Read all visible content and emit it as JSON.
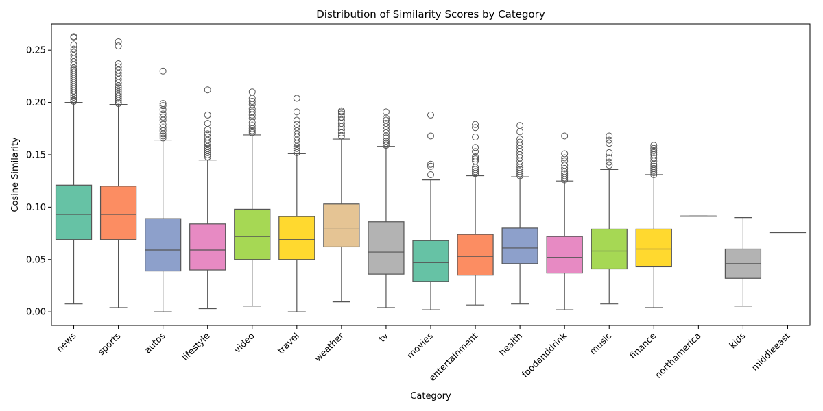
{
  "chart_data": {
    "type": "box",
    "title": "Distribution of Similarity Scores by Category",
    "xlabel": "Category",
    "ylabel": "Cosine Similarity",
    "ylim": [
      -0.013,
      0.275
    ],
    "yticks": [
      0.0,
      0.05,
      0.1,
      0.15,
      0.2,
      0.25
    ],
    "ytick_labels": [
      "0.00",
      "0.05",
      "0.10",
      "0.15",
      "0.20",
      "0.25"
    ],
    "grid": false,
    "legend": "none",
    "categories": [
      {
        "name": "news",
        "color": "#66c2a5",
        "whisker_low": 0.0075,
        "q1": 0.069,
        "median": 0.093,
        "q3": 0.121,
        "whisker_high": 0.2,
        "outliers": [
          0.201,
          0.202,
          0.203,
          0.205,
          0.207,
          0.209,
          0.211,
          0.213,
          0.215,
          0.217,
          0.219,
          0.221,
          0.223,
          0.225,
          0.227,
          0.229,
          0.231,
          0.233,
          0.236,
          0.239,
          0.242,
          0.245,
          0.248,
          0.251,
          0.255,
          0.262,
          0.263
        ]
      },
      {
        "name": "sports",
        "color": "#fc8d62",
        "whisker_low": 0.004,
        "q1": 0.069,
        "median": 0.093,
        "q3": 0.12,
        "whisker_high": 0.198,
        "outliers": [
          0.199,
          0.2,
          0.202,
          0.204,
          0.206,
          0.208,
          0.21,
          0.212,
          0.214,
          0.216,
          0.219,
          0.222,
          0.225,
          0.228,
          0.231,
          0.234,
          0.237,
          0.254,
          0.258
        ]
      },
      {
        "name": "autos",
        "color": "#8da0cb",
        "whisker_low": 0.0,
        "q1": 0.039,
        "median": 0.059,
        "q3": 0.089,
        "whisker_high": 0.164,
        "outliers": [
          0.166,
          0.168,
          0.17,
          0.173,
          0.176,
          0.179,
          0.183,
          0.186,
          0.189,
          0.193,
          0.197,
          0.199,
          0.23
        ]
      },
      {
        "name": "lifestyle",
        "color": "#e78ac3",
        "whisker_low": 0.003,
        "q1": 0.04,
        "median": 0.059,
        "q3": 0.084,
        "whisker_high": 0.145,
        "outliers": [
          0.148,
          0.15,
          0.152,
          0.154,
          0.156,
          0.158,
          0.161,
          0.164,
          0.167,
          0.17,
          0.174,
          0.18,
          0.188,
          0.212
        ]
      },
      {
        "name": "video",
        "color": "#a6d854",
        "whisker_low": 0.0055,
        "q1": 0.05,
        "median": 0.072,
        "q3": 0.098,
        "whisker_high": 0.169,
        "outliers": [
          0.171,
          0.173,
          0.175,
          0.178,
          0.181,
          0.185,
          0.188,
          0.191,
          0.194,
          0.198,
          0.201,
          0.204,
          0.21
        ]
      },
      {
        "name": "travel",
        "color": "#ffd92f",
        "whisker_low": 0.0,
        "q1": 0.05,
        "median": 0.069,
        "q3": 0.091,
        "whisker_high": 0.151,
        "outliers": [
          0.152,
          0.154,
          0.156,
          0.158,
          0.161,
          0.164,
          0.167,
          0.17,
          0.173,
          0.176,
          0.179,
          0.183,
          0.191,
          0.204
        ]
      },
      {
        "name": "weather",
        "color": "#e5c494",
        "whisker_low": 0.0095,
        "q1": 0.062,
        "median": 0.079,
        "q3": 0.103,
        "whisker_high": 0.165,
        "outliers": [
          0.168,
          0.171,
          0.174,
          0.177,
          0.18,
          0.183,
          0.186,
          0.189,
          0.191,
          0.192
        ]
      },
      {
        "name": "tv",
        "color": "#b3b3b3",
        "whisker_low": 0.004,
        "q1": 0.036,
        "median": 0.057,
        "q3": 0.086,
        "whisker_high": 0.158,
        "outliers": [
          0.159,
          0.161,
          0.163,
          0.166,
          0.168,
          0.171,
          0.174,
          0.177,
          0.18,
          0.183,
          0.185,
          0.191
        ]
      },
      {
        "name": "movies",
        "color": "#66c2a5",
        "whisker_low": 0.002,
        "q1": 0.029,
        "median": 0.047,
        "q3": 0.068,
        "whisker_high": 0.126,
        "outliers": [
          0.131,
          0.139,
          0.141,
          0.168,
          0.188
        ]
      },
      {
        "name": "entertainment",
        "color": "#fc8d62",
        "whisker_low": 0.0065,
        "q1": 0.035,
        "median": 0.053,
        "q3": 0.074,
        "whisker_high": 0.13,
        "outliers": [
          0.132,
          0.134,
          0.136,
          0.138,
          0.144,
          0.146,
          0.148,
          0.153,
          0.157,
          0.167,
          0.176,
          0.179
        ]
      },
      {
        "name": "health",
        "color": "#8da0cb",
        "whisker_low": 0.0075,
        "q1": 0.046,
        "median": 0.061,
        "q3": 0.08,
        "whisker_high": 0.129,
        "outliers": [
          0.13,
          0.132,
          0.134,
          0.136,
          0.138,
          0.141,
          0.144,
          0.147,
          0.15,
          0.153,
          0.156,
          0.159,
          0.162,
          0.165,
          0.172,
          0.178
        ]
      },
      {
        "name": "foodanddrink",
        "color": "#e78ac3",
        "whisker_low": 0.002,
        "q1": 0.037,
        "median": 0.052,
        "q3": 0.072,
        "whisker_high": 0.125,
        "outliers": [
          0.126,
          0.128,
          0.13,
          0.132,
          0.134,
          0.137,
          0.14,
          0.144,
          0.147,
          0.151,
          0.168
        ]
      },
      {
        "name": "music",
        "color": "#a6d854",
        "whisker_low": 0.0075,
        "q1": 0.041,
        "median": 0.058,
        "q3": 0.079,
        "whisker_high": 0.136,
        "outliers": [
          0.14,
          0.143,
          0.147,
          0.152,
          0.161,
          0.164,
          0.168
        ]
      },
      {
        "name": "finance",
        "color": "#ffd92f",
        "whisker_low": 0.004,
        "q1": 0.043,
        "median": 0.06,
        "q3": 0.079,
        "whisker_high": 0.131,
        "outliers": [
          0.131,
          0.133,
          0.135,
          0.137,
          0.139,
          0.141,
          0.144,
          0.147,
          0.15,
          0.152,
          0.154,
          0.156,
          0.159
        ]
      },
      {
        "name": "northamerica",
        "color": "#e5c494",
        "whisker_low": 0.0915,
        "q1": 0.0915,
        "median": 0.0915,
        "q3": 0.0915,
        "whisker_high": 0.0915,
        "outliers": []
      },
      {
        "name": "kids",
        "color": "#b3b3b3",
        "whisker_low": 0.0055,
        "q1": 0.032,
        "median": 0.046,
        "q3": 0.06,
        "whisker_high": 0.09,
        "outliers": []
      },
      {
        "name": "middleeast",
        "color": "#66c2a5",
        "whisker_low": 0.076,
        "q1": 0.076,
        "median": 0.076,
        "q3": 0.076,
        "whisker_high": 0.076,
        "outliers": []
      }
    ]
  }
}
